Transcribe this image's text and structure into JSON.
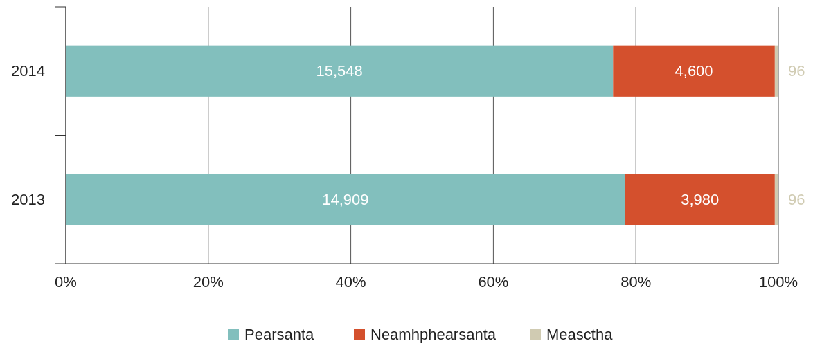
{
  "chart_data": {
    "type": "bar",
    "orientation": "horizontal",
    "stacked": true,
    "categories": [
      "2014",
      "2013"
    ],
    "series": [
      {
        "name": "Pearsanta",
        "color": "#82bfbd",
        "values": [
          76.8,
          78.5
        ]
      },
      {
        "name": "Neamhphearsanta",
        "color": "#d4502d",
        "values": [
          22.7,
          21.0
        ]
      },
      {
        "name": "Measctha",
        "color": "#d0cbb2",
        "values": [
          0.5,
          0.5
        ]
      }
    ],
    "annotations": [
      "15,548",
      "4,600",
      "96",
      "14,909",
      "3,980",
      "96"
    ],
    "xlim": [
      0,
      100
    ],
    "xticks": [
      {
        "value": 0,
        "label": "0%"
      },
      {
        "value": 20,
        "label": "20%"
      },
      {
        "value": 40,
        "label": "40%"
      },
      {
        "value": 60,
        "label": "60%"
      },
      {
        "value": 80,
        "label": "80%"
      },
      {
        "value": 100,
        "label": "100%"
      }
    ],
    "grid": "x",
    "legend": "bottom"
  }
}
